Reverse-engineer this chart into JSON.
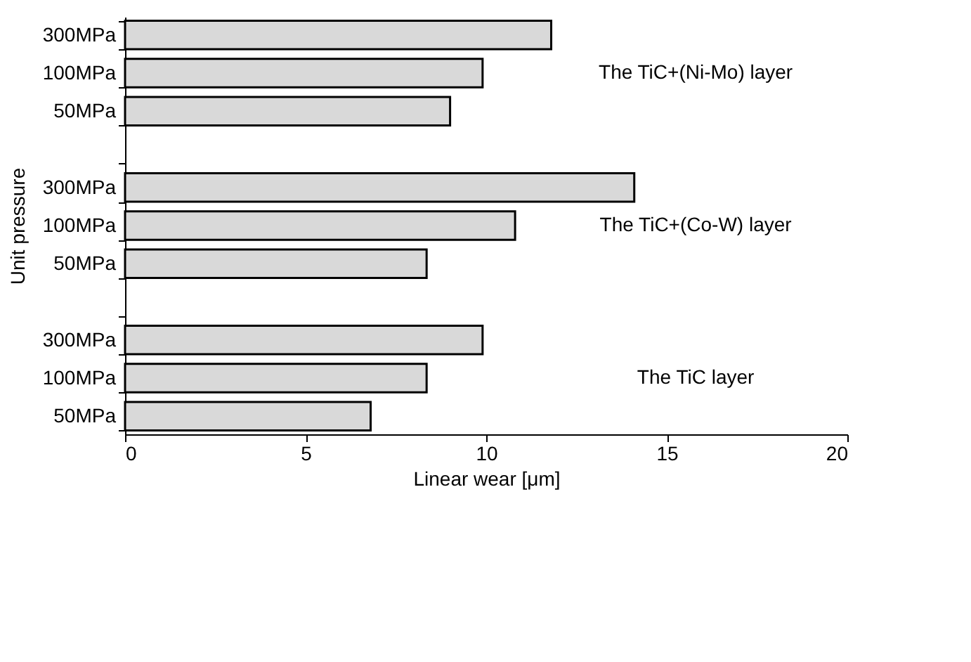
{
  "chart_data": {
    "type": "bar",
    "orientation": "horizontal",
    "categories": [
      "300MPa",
      "100MPa",
      "50MPa",
      null,
      "300MPa",
      "100MPa",
      "50MPa",
      null,
      "300MPa",
      "100MPa",
      "50MPa"
    ],
    "values": [
      11.8,
      9.9,
      9.0,
      null,
      14.1,
      10.8,
      8.35,
      null,
      9.9,
      8.35,
      6.8
    ],
    "color": "#d9d9d9",
    "xlabel": "Linear wear [μm]",
    "ylabel": "Unit pressure",
    "xlim": [
      0,
      20
    ],
    "xticks": [
      0,
      5,
      10,
      15,
      20
    ],
    "grid": false,
    "annotations": [
      "The TiC+(Ni-Mo) layer",
      "The TiC+(Co-W) layer",
      "The TiC layer"
    ]
  }
}
